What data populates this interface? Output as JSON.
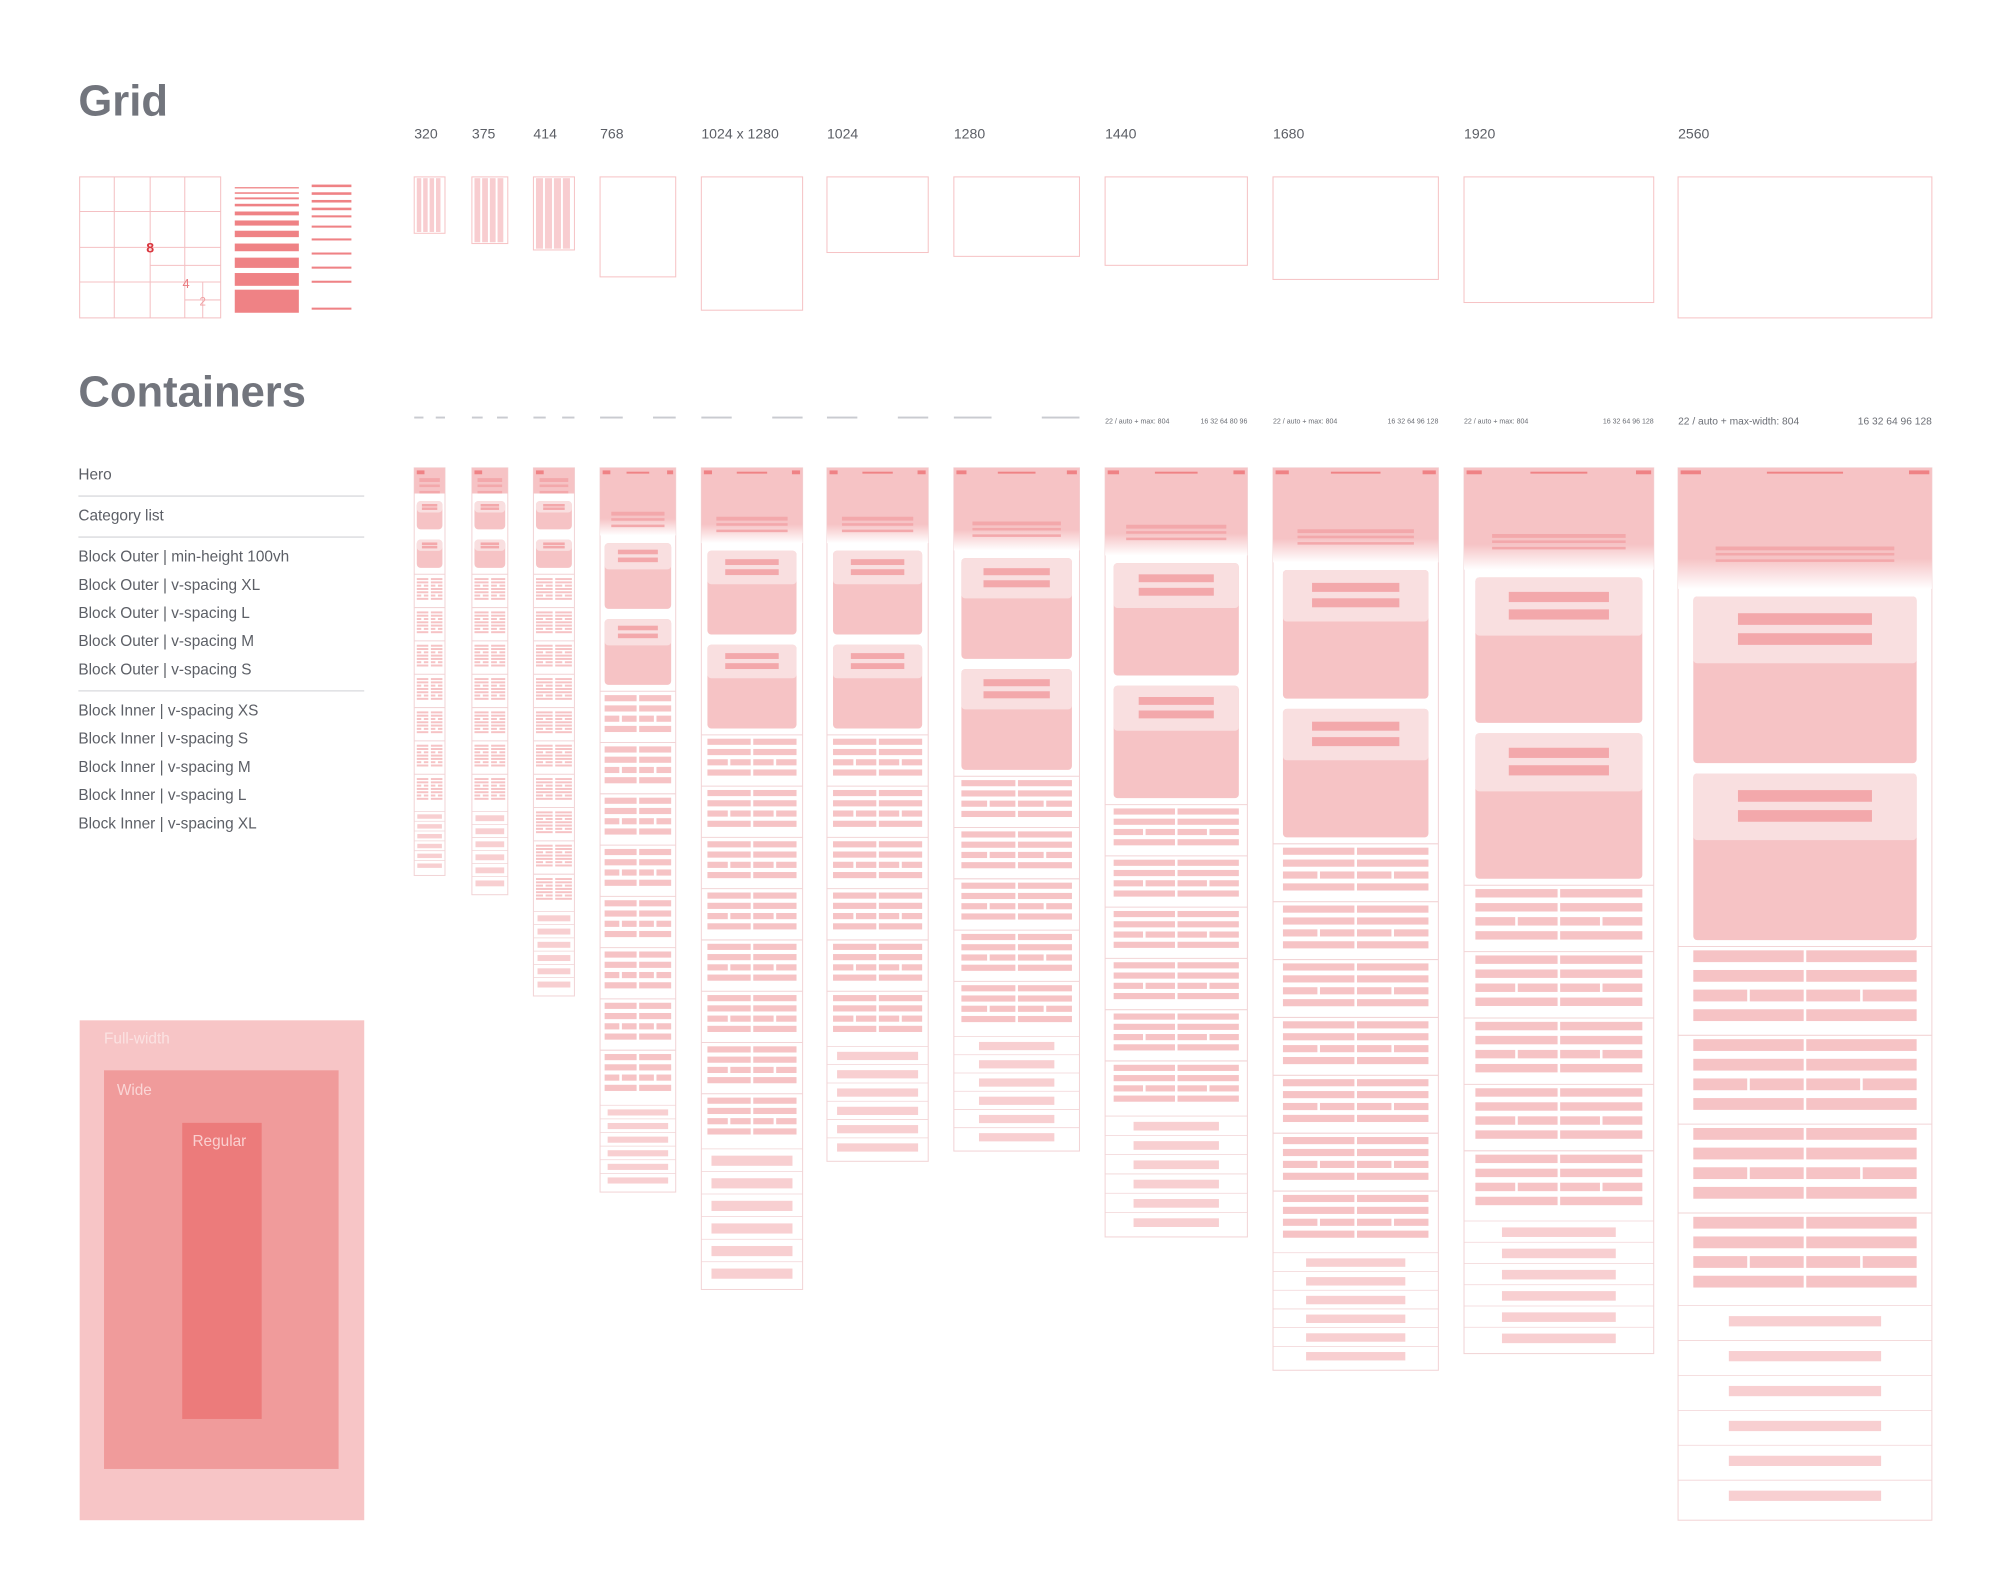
{
  "header": {
    "grid_title": "Grid",
    "containers_title": "Containers"
  },
  "grid_legend": {
    "major": "8",
    "medium": "4",
    "minor": "2"
  },
  "breakpoints": [
    {
      "label": "320"
    },
    {
      "label": "375"
    },
    {
      "label": "414"
    },
    {
      "label": "768"
    },
    {
      "label": "1024 x 1280"
    },
    {
      "label": "1024"
    },
    {
      "label": "1280"
    },
    {
      "label": "1440",
      "gutter": "22 / auto + max: 804",
      "spacing": "16 32 64 80 96"
    },
    {
      "label": "1680",
      "gutter": "22 / auto + max: 804",
      "spacing": "16 32 64 96 128"
    },
    {
      "label": "1920",
      "gutter": "22 / auto + max: 804",
      "spacing": "16 32 64 96 128"
    },
    {
      "label": "2560",
      "gutter": "22 / auto + max-width: 804",
      "spacing": "16 32 64 96 128"
    }
  ],
  "nav": {
    "groups": [
      [
        "Hero"
      ],
      [
        "Category list"
      ],
      [
        "Block Outer | min-height 100vh",
        "Block Outer | v-spacing XL",
        "Block Outer | v-spacing L",
        "Block Outer | v-spacing M",
        "Block Outer | v-spacing S"
      ],
      [
        "Block Inner | v-spacing XS",
        "Block Inner | v-spacing S",
        "Block Inner | v-spacing M",
        "Block Inner | v-spacing L",
        "Block Inner | v-spacing XL"
      ]
    ]
  },
  "widths": {
    "full": "Full-width",
    "wide": "Wide",
    "regular": "Regular"
  }
}
